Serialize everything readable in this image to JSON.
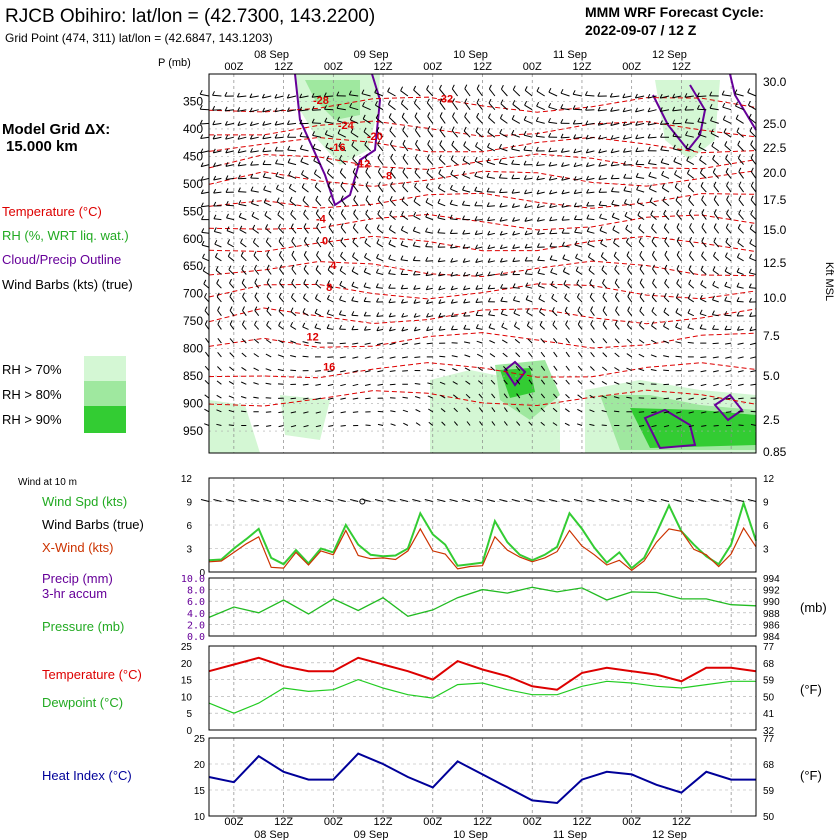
{
  "header": {
    "station": "RJCB Obihiro:  lat/lon = (42.7300, 143.2200)",
    "gridpoint": "Grid Point (474, 311) lat/lon = (42.6847, 143.1203)",
    "model": "MMM WRF Forecast Cycle:",
    "cycle": "2022-09-07 / 12  Z",
    "grid_label": "Model Grid ΔX:",
    "grid_value": "15.000 km"
  },
  "time_axis": {
    "hours": [
      "00Z",
      "12Z",
      "00Z",
      "12Z",
      "00Z",
      "12Z",
      "00Z",
      "12Z",
      "00Z",
      "12Z"
    ],
    "dates": [
      "08 Sep",
      "09 Sep",
      "10 Sep",
      "11 Sep",
      "12 Sep"
    ]
  },
  "legends": {
    "temperature": "Temperature (°C)",
    "rh": "RH (%, WRT liq. wat.)",
    "cloud": "Cloud/Precip Outline",
    "barbs": "Wind Barbs (kts) (true)",
    "rh70": "RH > 70%",
    "rh80": "RH > 80%",
    "rh90": "RH > 90%",
    "wind10": "Wind at 10 m",
    "wspd": "Wind Spd (kts)",
    "wbarb": "Wind Barbs (true)",
    "xwind": "X-Wind (kts)",
    "precip": "Precip (mm)",
    "precip2": "3-hr accum",
    "pressure": "Pressure (mb)",
    "mb": "(mb)",
    "temp2": "Temperature (°C)",
    "dew": "Dewpoint (°C)",
    "degf": "(°F)",
    "heat": "Heat Index (°C)",
    "degf2": "(°F)"
  },
  "colors": {
    "temp": "#dd0000",
    "rh70": "#d4f7d4",
    "rh80": "#9fe89f",
    "rh90": "#33cc33",
    "cloud": "#660099",
    "wspd": "#33cc33",
    "xwind": "#cc3300",
    "pressure": "#22bb22",
    "dew": "#22cc22",
    "heat": "#000099",
    "precip": "#660099"
  },
  "chart_data": [
    {
      "type": "cross-section",
      "name": "upper-air",
      "pressure_label": "P (mb)",
      "pressure_ticks": [
        350,
        400,
        450,
        500,
        550,
        600,
        650,
        700,
        750,
        800,
        850,
        900,
        950
      ],
      "height_label": "Kft MSL",
      "height_ticks": [
        "30.0",
        "25.0",
        "22.5",
        "20.0",
        "17.5",
        "15.0",
        "12.5",
        "10.0",
        "7.5",
        "5.0",
        "2.5",
        "0.85"
      ],
      "isotherm_labels": [
        {
          "text": "-28",
          "time": 27,
          "p": 355
        },
        {
          "text": "-32",
          "time": 57,
          "p": 352
        },
        {
          "text": "-24",
          "time": 33,
          "p": 400
        },
        {
          "text": "-20",
          "time": 40,
          "p": 420
        },
        {
          "text": "-16",
          "time": 31,
          "p": 440
        },
        {
          "text": "-12",
          "time": 37,
          "p": 470
        },
        {
          "text": "-8",
          "time": 43,
          "p": 492
        },
        {
          "text": "-4",
          "time": 27,
          "p": 570
        },
        {
          "text": "0",
          "time": 28,
          "p": 610
        },
        {
          "text": "4",
          "time": 30,
          "p": 655
        },
        {
          "text": "8",
          "time": 29,
          "p": 695
        },
        {
          "text": "12",
          "time": 25,
          "p": 785
        },
        {
          "text": "16",
          "time": 29,
          "p": 840
        }
      ]
    },
    {
      "type": "line",
      "name": "wind-10m",
      "y_ticks": [
        3,
        6,
        9,
        12
      ],
      "ylim": [
        0,
        12
      ],
      "x_hours": [
        0,
        3,
        6,
        9,
        12,
        15,
        18,
        21,
        24,
        27,
        30,
        33,
        36,
        39,
        42,
        45,
        48,
        51,
        54,
        57,
        60,
        63,
        66,
        69,
        72,
        75,
        78,
        81,
        84,
        87,
        90,
        93,
        96,
        99,
        102,
        105,
        108,
        111,
        114,
        117,
        120,
        123,
        126,
        129,
        132
      ],
      "series": [
        {
          "name": "Wind Spd (kts)",
          "color": "#33cc33",
          "values": [
            1.5,
            1.6,
            3,
            4.2,
            5.5,
            1.8,
            1,
            2.8,
            1.1,
            3,
            2.5,
            6,
            3.5,
            2.2,
            2,
            2.1,
            3,
            7.5,
            4.8,
            3.5,
            0.8,
            1,
            1.2,
            6.5,
            3.8,
            2.2,
            1.5,
            2.2,
            3.2,
            7.5,
            5.5,
            3.1,
            1.2,
            2.5,
            0.5,
            1.8,
            5,
            8.5,
            5.2,
            3.5,
            2,
            1,
            3.5,
            8.8,
            4
          ]
        },
        {
          "name": "X-Wind (kts)",
          "color": "#cc3300",
          "values": [
            1.3,
            1.4,
            2.5,
            3.6,
            4.5,
            0.6,
            0.5,
            2.5,
            0.9,
            2.7,
            2.2,
            5.3,
            2.1,
            1.7,
            1.8,
            1.6,
            2.7,
            5.5,
            2.7,
            2.3,
            0.4,
            0.7,
            0.8,
            4.5,
            2.8,
            1.9,
            1.3,
            1.8,
            2.6,
            5.3,
            3.3,
            2.2,
            0.9,
            1.5,
            0.2,
            1.4,
            3.8,
            5.5,
            5.2,
            2.9,
            2.2,
            0.7,
            2.3,
            5.6,
            3.2
          ]
        }
      ],
      "station_marks": [
        {
          "time": 37,
          "v": 9
        }
      ]
    },
    {
      "type": "line",
      "name": "precip-pressure",
      "left_label_ticks": [
        "0.0",
        "2.0",
        "4.0",
        "6.0",
        "8.0",
        "10.0"
      ],
      "right_ticks": [
        984,
        986,
        988,
        990,
        992,
        994
      ],
      "ylim_precip": [
        0,
        10
      ],
      "ylim_pressure": [
        984,
        994
      ],
      "x_hours": [
        0,
        6,
        12,
        18,
        24,
        30,
        36,
        42,
        48,
        54,
        60,
        66,
        72,
        78,
        84,
        90,
        96,
        102,
        108,
        114,
        120,
        126,
        132
      ],
      "series": [
        {
          "name": "Pressure (mb)",
          "color": "#22bb22",
          "values": [
            987.2,
            989,
            988,
            990.2,
            987.8,
            990.4,
            988.4,
            990.6,
            987.4,
            988.5,
            990.6,
            992,
            991.4,
            992.4,
            991.6,
            992.3,
            990.2,
            991.6,
            991.5,
            990.4,
            990.4,
            989.4,
            989.2
          ]
        }
      ]
    },
    {
      "type": "line",
      "name": "temp-dew",
      "y_ticks": [
        0,
        5,
        10,
        15,
        20,
        25
      ],
      "ylim": [
        0,
        25
      ],
      "right_ticks": [
        "32",
        "41",
        "50",
        "59",
        "68",
        "77"
      ],
      "x_hours": [
        0,
        6,
        12,
        18,
        24,
        30,
        36,
        42,
        48,
        54,
        60,
        66,
        72,
        78,
        84,
        90,
        96,
        102,
        108,
        114,
        120,
        126,
        132
      ],
      "series": [
        {
          "name": "Temperature (°C)",
          "color": "#dd0000",
          "values": [
            17.5,
            19.5,
            21.5,
            19,
            17.5,
            17.5,
            21.5,
            19.5,
            17.5,
            15,
            20.5,
            18,
            16,
            13,
            12,
            17,
            18.5,
            17.5,
            16.5,
            14.5,
            18.5,
            18.5,
            17.5
          ]
        },
        {
          "name": "Dewpoint (°C)",
          "color": "#22cc22",
          "values": [
            8,
            5,
            8,
            12.5,
            11.5,
            12,
            15,
            12.5,
            10.5,
            9.5,
            13.5,
            14,
            12,
            10.5,
            10.5,
            13,
            14.5,
            14,
            13,
            12.5,
            13.5,
            14.5,
            14.5
          ]
        }
      ]
    },
    {
      "type": "line",
      "name": "heat-index",
      "y_ticks": [
        10,
        15,
        20,
        25
      ],
      "ylim": [
        10,
        25
      ],
      "right_ticks": [
        "50",
        "59",
        "68",
        "77"
      ],
      "x_hours": [
        0,
        6,
        12,
        18,
        24,
        30,
        36,
        42,
        48,
        54,
        60,
        66,
        72,
        78,
        84,
        90,
        96,
        102,
        108,
        114,
        120,
        126,
        132
      ],
      "series": [
        {
          "name": "Heat Index (°C)",
          "color": "#000099",
          "values": [
            17.5,
            16.5,
            21.5,
            18.5,
            17,
            17,
            22,
            20,
            17.5,
            15.5,
            20.5,
            18,
            15.5,
            13,
            12.5,
            17,
            18.5,
            18,
            16,
            14.5,
            18.5,
            17,
            17
          ]
        }
      ]
    }
  ]
}
